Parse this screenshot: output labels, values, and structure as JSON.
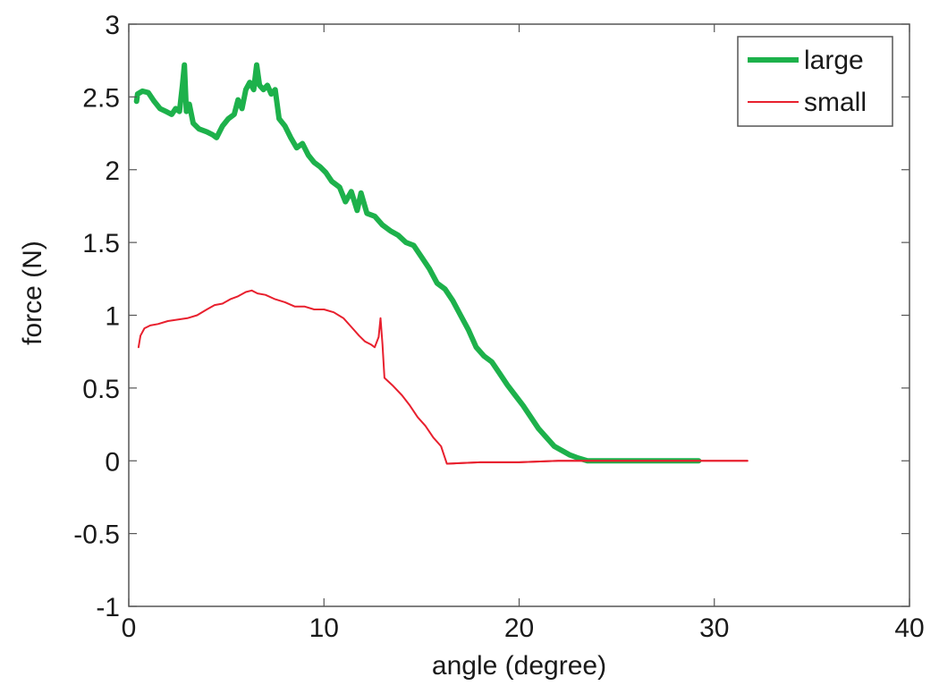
{
  "chart_data": {
    "type": "line",
    "title": "",
    "xlabel": "angle (degree)",
    "ylabel": "force (N)",
    "xlim": [
      0,
      40
    ],
    "ylim": [
      -1,
      3
    ],
    "xticks": [
      0,
      10,
      20,
      30,
      40
    ],
    "xtick_labels": [
      "0",
      "10",
      "20",
      "30",
      "40"
    ],
    "yticks": [
      -1,
      -0.5,
      0,
      0.5,
      1,
      1.5,
      2,
      2.5,
      3
    ],
    "ytick_labels": [
      "-1",
      "-0.5",
      "0",
      "0.5",
      "1",
      "1.5",
      "2",
      "2.5",
      "3"
    ],
    "grid": false,
    "legend_position": "upper right",
    "series": [
      {
        "name": "large",
        "color": "#1db14b",
        "line_width": 6,
        "x": [
          0.4,
          0.45,
          0.7,
          1.0,
          1.3,
          1.6,
          1.9,
          2.2,
          2.4,
          2.6,
          2.75,
          2.85,
          2.95,
          3.1,
          3.3,
          3.6,
          4.0,
          4.3,
          4.5,
          4.8,
          5.1,
          5.4,
          5.6,
          5.8,
          6.0,
          6.2,
          6.4,
          6.55,
          6.7,
          6.9,
          7.1,
          7.3,
          7.5,
          7.7,
          8.0,
          8.3,
          8.6,
          8.9,
          9.2,
          9.5,
          9.8,
          10.1,
          10.4,
          10.8,
          11.1,
          11.4,
          11.7,
          11.9,
          12.2,
          12.6,
          13.0,
          13.4,
          13.8,
          14.2,
          14.6,
          15.0,
          15.4,
          15.8,
          16.2,
          16.6,
          17.0,
          17.4,
          17.8,
          18.2,
          18.6,
          19.0,
          19.4,
          19.8,
          20.2,
          20.6,
          21.0,
          21.4,
          21.8,
          22.2,
          22.6,
          23.0,
          23.5,
          24.0,
          25.0,
          26.0,
          27.0,
          28.0,
          29.2
        ],
        "y": [
          2.47,
          2.52,
          2.54,
          2.53,
          2.47,
          2.42,
          2.4,
          2.38,
          2.42,
          2.4,
          2.58,
          2.72,
          2.4,
          2.45,
          2.32,
          2.28,
          2.26,
          2.24,
          2.22,
          2.3,
          2.35,
          2.38,
          2.48,
          2.42,
          2.55,
          2.6,
          2.55,
          2.72,
          2.58,
          2.55,
          2.58,
          2.52,
          2.55,
          2.35,
          2.3,
          2.22,
          2.15,
          2.18,
          2.1,
          2.05,
          2.02,
          1.98,
          1.92,
          1.88,
          1.78,
          1.85,
          1.72,
          1.84,
          1.7,
          1.68,
          1.62,
          1.58,
          1.55,
          1.5,
          1.48,
          1.4,
          1.32,
          1.22,
          1.18,
          1.1,
          1.0,
          0.9,
          0.78,
          0.72,
          0.68,
          0.6,
          0.52,
          0.45,
          0.38,
          0.3,
          0.22,
          0.16,
          0.1,
          0.07,
          0.04,
          0.02,
          0.0,
          0.0,
          0.0,
          0.0,
          0.0,
          0.0,
          0.0
        ]
      },
      {
        "name": "small",
        "color": "#e8202e",
        "line_width": 2,
        "x": [
          0.5,
          0.6,
          0.8,
          1.1,
          1.5,
          2.0,
          2.5,
          3.0,
          3.5,
          4.0,
          4.4,
          4.8,
          5.2,
          5.6,
          6.0,
          6.3,
          6.6,
          7.0,
          7.5,
          8.0,
          8.5,
          9.0,
          9.5,
          10.0,
          10.5,
          11.0,
          11.4,
          11.8,
          12.1,
          12.4,
          12.6,
          12.8,
          12.9,
          13.0,
          13.1,
          13.5,
          14.0,
          14.4,
          14.8,
          15.2,
          15.6,
          16.0,
          16.3,
          18.0,
          20.0,
          22.0,
          24.0,
          26.0,
          28.0,
          30.0,
          31.7
        ],
        "y": [
          0.78,
          0.86,
          0.91,
          0.93,
          0.94,
          0.96,
          0.97,
          0.98,
          1.0,
          1.04,
          1.07,
          1.08,
          1.11,
          1.13,
          1.16,
          1.17,
          1.15,
          1.14,
          1.11,
          1.09,
          1.06,
          1.06,
          1.04,
          1.04,
          1.02,
          0.98,
          0.92,
          0.86,
          0.82,
          0.8,
          0.78,
          0.85,
          0.98,
          0.8,
          0.57,
          0.52,
          0.45,
          0.38,
          0.3,
          0.24,
          0.16,
          0.1,
          -0.02,
          -0.01,
          -0.01,
          0.0,
          0.0,
          0.0,
          0.0,
          0.0,
          0.0
        ]
      }
    ]
  },
  "legend": {
    "items": [
      {
        "label": "large",
        "color": "#1db14b"
      },
      {
        "label": "small",
        "color": "#e8202e"
      }
    ]
  },
  "axes": {
    "xlabel": "angle (degree)",
    "ylabel": "force (N)",
    "frame_color": "#555555"
  }
}
